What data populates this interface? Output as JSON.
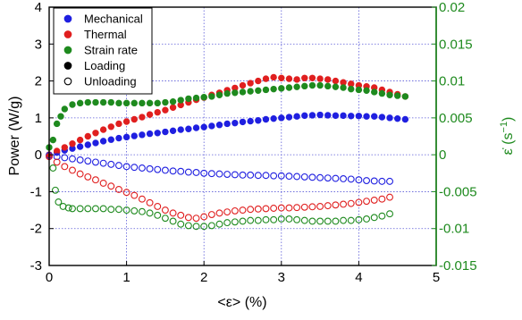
{
  "chart_data": {
    "type": "scatter",
    "xlabel": "<ε> (%)",
    "ylabel_left": "Power (W/g)",
    "ylabel_right_main": "ε̇ (s",
    "ylabel_right_sup": "−1",
    "ylabel_right_close": ")",
    "xlim": [
      0,
      5
    ],
    "ylim_left": [
      -3,
      4
    ],
    "ylim_right": [
      -0.015,
      0.02
    ],
    "xticks": [
      "0",
      "1",
      "2",
      "3",
      "4",
      "5"
    ],
    "yticks_left": [
      "4",
      "3",
      "2",
      "1",
      "0",
      "-1",
      "-2",
      "-3"
    ],
    "yticks_right": [
      "0.02",
      "0.015",
      "0.01",
      "0.005",
      "0",
      "-0.005",
      "-0.01",
      "-0.015"
    ],
    "grid": true,
    "legend_position": "top-left",
    "legend": [
      {
        "label": "Mechanical",
        "color": "#1f1fe0",
        "filled": true
      },
      {
        "label": "Thermal",
        "color": "#e01f1f",
        "filled": true
      },
      {
        "label": "Strain rate",
        "color": "#1e8a1e",
        "filled": true
      },
      {
        "label": "Loading",
        "color": "#000000",
        "filled": true
      },
      {
        "label": "Unloading",
        "color": "#000000",
        "filled": false
      }
    ],
    "series": [
      {
        "name": "Mechanical",
        "phase": "Loading",
        "axis": "left",
        "color": "#1f1fe0",
        "filled": true,
        "x": [
          0,
          0.1,
          0.2,
          0.3,
          0.4,
          0.5,
          0.6,
          0.7,
          0.8,
          0.9,
          1.0,
          1.1,
          1.2,
          1.3,
          1.4,
          1.5,
          1.6,
          1.7,
          1.8,
          1.9,
          2.0,
          2.1,
          2.2,
          2.3,
          2.4,
          2.5,
          2.6,
          2.7,
          2.8,
          2.9,
          3.0,
          3.1,
          3.2,
          3.3,
          3.4,
          3.5,
          3.6,
          3.7,
          3.8,
          3.9,
          4.0,
          4.1,
          4.2,
          4.3,
          4.4,
          4.5,
          4.6
        ],
        "y": [
          0.0,
          0.06,
          0.12,
          0.17,
          0.22,
          0.27,
          0.32,
          0.37,
          0.41,
          0.45,
          0.48,
          0.51,
          0.54,
          0.57,
          0.59,
          0.62,
          0.65,
          0.68,
          0.7,
          0.73,
          0.75,
          0.78,
          0.81,
          0.84,
          0.86,
          0.89,
          0.91,
          0.93,
          0.96,
          0.98,
          1.0,
          1.02,
          1.04,
          1.06,
          1.07,
          1.08,
          1.07,
          1.06,
          1.06,
          1.05,
          1.05,
          1.04,
          1.04,
          1.02,
          1.0,
          0.98,
          0.96
        ]
      },
      {
        "name": "Thermal",
        "phase": "Loading",
        "axis": "left",
        "color": "#e01f1f",
        "filled": true,
        "x": [
          0,
          0.1,
          0.2,
          0.3,
          0.4,
          0.5,
          0.6,
          0.7,
          0.8,
          0.9,
          1.0,
          1.1,
          1.2,
          1.3,
          1.4,
          1.5,
          1.6,
          1.7,
          1.8,
          1.9,
          2.0,
          2.1,
          2.2,
          2.3,
          2.4,
          2.5,
          2.6,
          2.7,
          2.8,
          2.9,
          3.0,
          3.1,
          3.2,
          3.3,
          3.4,
          3.5,
          3.6,
          3.7,
          3.8,
          3.9,
          4.0,
          4.1,
          4.2,
          4.3,
          4.4,
          4.5,
          4.6
        ],
        "y": [
          0.0,
          0.1,
          0.2,
          0.3,
          0.4,
          0.5,
          0.59,
          0.68,
          0.76,
          0.84,
          0.9,
          0.96,
          1.02,
          1.09,
          1.15,
          1.21,
          1.28,
          1.35,
          1.42,
          1.49,
          1.55,
          1.62,
          1.68,
          1.75,
          1.81,
          1.88,
          1.94,
          2.0,
          2.06,
          2.1,
          2.08,
          2.06,
          2.04,
          2.08,
          2.08,
          2.06,
          2.04,
          2.0,
          1.96,
          1.92,
          1.88,
          1.85,
          1.82,
          1.76,
          1.7,
          1.64,
          1.58
        ]
      },
      {
        "name": "Strain rate",
        "phase": "Loading",
        "axis": "right",
        "color": "#1e8a1e",
        "filled": true,
        "x": [
          0,
          0.05,
          0.1,
          0.15,
          0.2,
          0.3,
          0.4,
          0.5,
          0.6,
          0.7,
          0.8,
          0.9,
          1.0,
          1.1,
          1.2,
          1.3,
          1.4,
          1.5,
          1.6,
          1.7,
          1.8,
          1.9,
          2.0,
          2.1,
          2.2,
          2.3,
          2.4,
          2.5,
          2.6,
          2.7,
          2.8,
          2.9,
          3.0,
          3.1,
          3.2,
          3.3,
          3.4,
          3.5,
          3.6,
          3.7,
          3.8,
          3.9,
          4.0,
          4.1,
          4.2,
          4.3,
          4.4,
          4.5,
          4.6
        ],
        "y": [
          0.001,
          0.002,
          0.0042,
          0.0052,
          0.0062,
          0.0068,
          0.007,
          0.0071,
          0.0071,
          0.0071,
          0.0071,
          0.007,
          0.007,
          0.007,
          0.007,
          0.007,
          0.007,
          0.0071,
          0.0072,
          0.0074,
          0.0076,
          0.0077,
          0.0078,
          0.0079,
          0.0081,
          0.0083,
          0.0084,
          0.0085,
          0.0086,
          0.0087,
          0.0088,
          0.0089,
          0.009,
          0.0091,
          0.0092,
          0.0093,
          0.0094,
          0.0094,
          0.0093,
          0.0092,
          0.0091,
          0.0089,
          0.0088,
          0.0087,
          0.0085,
          0.0083,
          0.0081,
          0.008,
          0.0079
        ]
      },
      {
        "name": "Mechanical",
        "phase": "Unloading",
        "axis": "left",
        "color": "#1f1fe0",
        "filled": false,
        "x": [
          0,
          0.1,
          0.2,
          0.3,
          0.4,
          0.5,
          0.6,
          0.7,
          0.8,
          0.9,
          1.0,
          1.1,
          1.2,
          1.3,
          1.4,
          1.5,
          1.6,
          1.7,
          1.8,
          1.9,
          2.0,
          2.1,
          2.2,
          2.3,
          2.4,
          2.5,
          2.6,
          2.7,
          2.8,
          2.9,
          3.0,
          3.1,
          3.2,
          3.3,
          3.4,
          3.5,
          3.6,
          3.7,
          3.8,
          3.9,
          4.0,
          4.1,
          4.2,
          4.3,
          4.4
        ],
        "y": [
          -0.02,
          -0.05,
          -0.08,
          -0.11,
          -0.14,
          -0.17,
          -0.2,
          -0.23,
          -0.26,
          -0.29,
          -0.32,
          -0.34,
          -0.36,
          -0.38,
          -0.4,
          -0.42,
          -0.44,
          -0.45,
          -0.47,
          -0.48,
          -0.5,
          -0.51,
          -0.52,
          -0.53,
          -0.54,
          -0.55,
          -0.55,
          -0.56,
          -0.56,
          -0.57,
          -0.57,
          -0.58,
          -0.59,
          -0.6,
          -0.61,
          -0.62,
          -0.63,
          -0.64,
          -0.65,
          -0.66,
          -0.68,
          -0.7,
          -0.71,
          -0.72,
          -0.72
        ]
      },
      {
        "name": "Thermal",
        "phase": "Unloading",
        "axis": "left",
        "color": "#e01f1f",
        "filled": false,
        "x": [
          0,
          0.1,
          0.2,
          0.3,
          0.4,
          0.5,
          0.6,
          0.7,
          0.8,
          0.9,
          1.0,
          1.1,
          1.2,
          1.3,
          1.4,
          1.5,
          1.6,
          1.7,
          1.8,
          1.9,
          2.0,
          2.1,
          2.2,
          2.3,
          2.4,
          2.5,
          2.6,
          2.7,
          2.8,
          2.9,
          3.0,
          3.1,
          3.2,
          3.3,
          3.4,
          3.5,
          3.6,
          3.7,
          3.8,
          3.9,
          4.0,
          4.1,
          4.2,
          4.3,
          4.4
        ],
        "y": [
          -0.05,
          -0.2,
          -0.32,
          -0.42,
          -0.52,
          -0.6,
          -0.68,
          -0.77,
          -0.85,
          -0.94,
          -1.02,
          -1.1,
          -1.2,
          -1.3,
          -1.4,
          -1.5,
          -1.58,
          -1.64,
          -1.7,
          -1.72,
          -1.68,
          -1.62,
          -1.58,
          -1.55,
          -1.52,
          -1.5,
          -1.48,
          -1.47,
          -1.46,
          -1.45,
          -1.44,
          -1.44,
          -1.43,
          -1.42,
          -1.41,
          -1.4,
          -1.38,
          -1.36,
          -1.34,
          -1.32,
          -1.29,
          -1.26,
          -1.23,
          -1.2,
          -1.15
        ]
      },
      {
        "name": "Strain rate",
        "phase": "Unloading",
        "axis": "right",
        "color": "#1e8a1e",
        "filled": false,
        "x": [
          0.05,
          0.08,
          0.12,
          0.18,
          0.25,
          0.3,
          0.4,
          0.5,
          0.6,
          0.7,
          0.8,
          0.9,
          1.0,
          1.1,
          1.2,
          1.3,
          1.4,
          1.5,
          1.6,
          1.7,
          1.8,
          1.9,
          2.0,
          2.1,
          2.2,
          2.3,
          2.4,
          2.5,
          2.6,
          2.7,
          2.8,
          2.9,
          3.0,
          3.1,
          3.2,
          3.3,
          3.4,
          3.5,
          3.6,
          3.7,
          3.8,
          3.9,
          4.0,
          4.1,
          4.2,
          4.3,
          4.4
        ],
        "y": [
          -0.0018,
          -0.0048,
          -0.0064,
          -0.007,
          -0.0072,
          -0.0073,
          -0.0073,
          -0.0073,
          -0.0073,
          -0.0073,
          -0.0074,
          -0.0074,
          -0.0075,
          -0.0076,
          -0.0077,
          -0.0079,
          -0.0082,
          -0.0086,
          -0.009,
          -0.0094,
          -0.0096,
          -0.0097,
          -0.0097,
          -0.0096,
          -0.0094,
          -0.0092,
          -0.0091,
          -0.009,
          -0.0089,
          -0.0089,
          -0.0088,
          -0.0088,
          -0.0087,
          -0.0087,
          -0.0088,
          -0.0089,
          -0.009,
          -0.009,
          -0.009,
          -0.009,
          -0.0089,
          -0.0089,
          -0.0088,
          -0.0087,
          -0.0085,
          -0.0083,
          -0.008
        ]
      }
    ]
  }
}
